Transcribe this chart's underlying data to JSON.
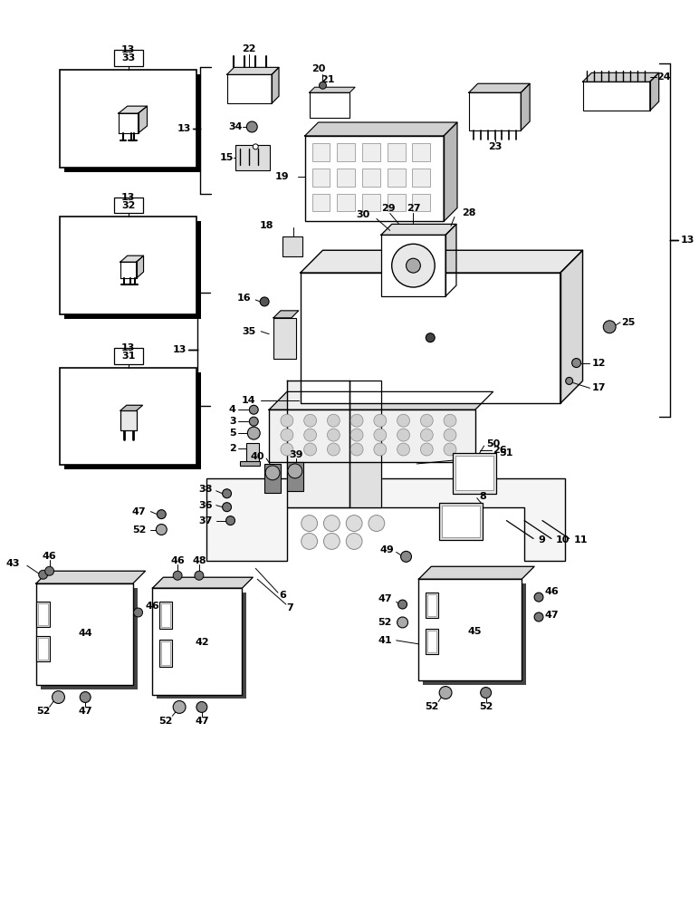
{
  "bg": "#ffffff",
  "lc": "#000000",
  "fig_w": 7.72,
  "fig_h": 10.0,
  "dpi": 100
}
